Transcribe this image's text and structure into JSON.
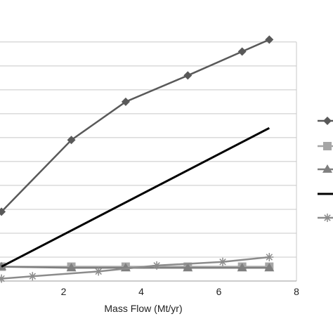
{
  "chart_data": {
    "type": "line",
    "xlabel": "Mass Flow (Mt/yr)",
    "ylabel": "",
    "xlim": [
      0,
      8
    ],
    "ylim": [
      0,
      10
    ],
    "x_ticks": [
      2,
      4,
      6,
      8
    ],
    "grid": "horizontal",
    "legend_position": "right (labels cropped)",
    "series": [
      {
        "marker": "diamond",
        "color": "#595959",
        "x": [
          0.4,
          2.2,
          3.6,
          5.2,
          6.6,
          7.3
        ],
        "y": [
          2.9,
          5.9,
          7.5,
          8.6,
          9.6,
          10.1
        ]
      },
      {
        "marker": "square",
        "color": "#a6a6a6",
        "x": [
          0.4,
          2.2,
          3.6,
          5.2,
          6.6,
          7.3
        ],
        "y": [
          0.6,
          0.6,
          0.6,
          0.6,
          0.6,
          0.6
        ]
      },
      {
        "marker": "triangle",
        "color": "#7f7f7f",
        "x": [
          0.4,
          2.2,
          3.6,
          5.2,
          6.6,
          7.3
        ],
        "y": [
          0.6,
          0.55,
          0.55,
          0.55,
          0.55,
          0.55
        ]
      },
      {
        "marker": "none",
        "color": "#000000",
        "x": [
          0.4,
          7.3
        ],
        "y": [
          0.6,
          6.4
        ]
      },
      {
        "marker": "asterisk",
        "color": "#8c8c8c",
        "x": [
          0.4,
          1.2,
          2.9,
          4.4,
          6.1,
          7.3
        ],
        "y": [
          0.1,
          0.2,
          0.4,
          0.65,
          0.8,
          1.0
        ]
      }
    ]
  }
}
